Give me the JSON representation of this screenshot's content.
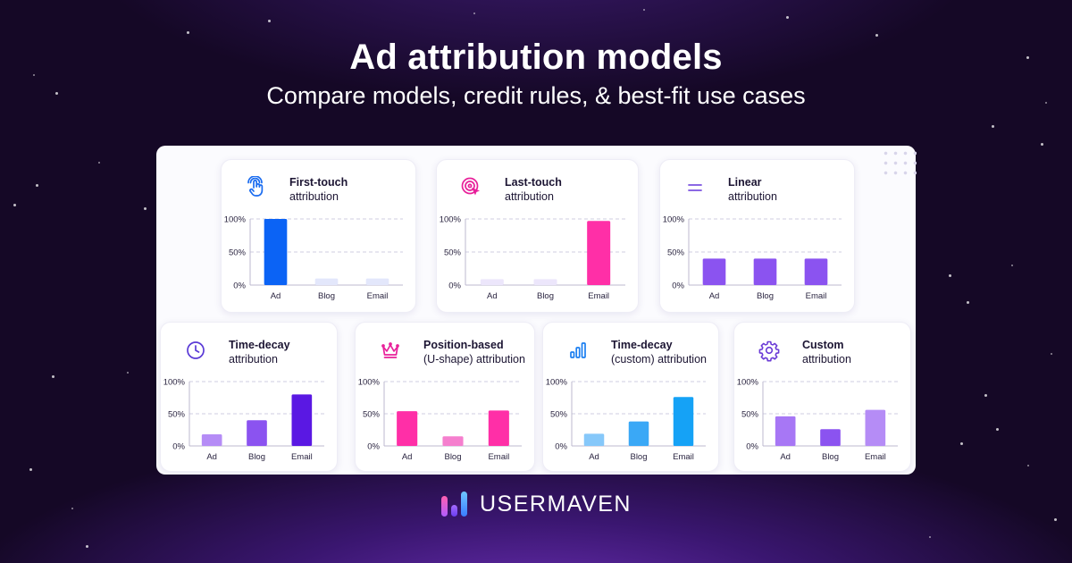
{
  "hero": {
    "title": "Ad attribution models",
    "subtitle": "Compare models, credit rules, & best-fit use cases"
  },
  "brand": {
    "name": "USERMAVEN"
  },
  "colors": {
    "blue": "#0b63f5",
    "pink": "#ff2fa7",
    "purple": "#8b53f0",
    "deep_purple": "#5a18e3",
    "sky": "#15a2f6",
    "lavender": "#b58cf6",
    "pale": "#e3e7fb"
  },
  "cards": [
    {
      "title_line1": "First-touch",
      "title_line2": "attribution",
      "icon": "tap-hand-icon",
      "icon_bg": "#e0efff",
      "icon_color": "#1a6cf0"
    },
    {
      "title_line1": "Last-touch",
      "title_line2": "attribution",
      "icon": "cursor-target-icon",
      "icon_bg": "#ffe2f3",
      "icon_color": "#e8209a"
    },
    {
      "title_line1": "Linear",
      "title_line2": "attribution",
      "icon": "equal-lines-icon",
      "icon_bg": "#ece7fb",
      "icon_color": "#7b53e0"
    },
    {
      "title_line1": "Time-decay",
      "title_line2": "attribution",
      "icon": "clock-icon",
      "icon_bg": "#ece7fb",
      "icon_color": "#5a3ad6"
    },
    {
      "title_line1": "Position-based",
      "title_line2": "(U-shape) attribution",
      "icon": "crown-icon",
      "icon_bg": "#ffe2f3",
      "icon_color": "#e8209a"
    },
    {
      "title_line1": "Time-decay",
      "title_line2": "(custom) attribution",
      "icon": "bar-chart-icon",
      "icon_bg": "#e0efff",
      "icon_color": "#1a7ef0"
    },
    {
      "title_line1": "Custom",
      "title_line2": "attribution",
      "icon": "gear-icon",
      "icon_bg": "#ece7fb",
      "icon_color": "#6a3ad6"
    }
  ],
  "chart_data": [
    {
      "type": "bar",
      "title": "First-touch attribution",
      "categories": [
        "Ad",
        "Blog",
        "Email"
      ],
      "values": [
        100,
        10,
        10
      ],
      "colors": [
        "#0b63f5",
        "#e3e7fb",
        "#e3e7fb"
      ],
      "ylim": [
        0,
        100
      ],
      "yticks": [
        "100%",
        "50%",
        "0%"
      ],
      "grid": true
    },
    {
      "type": "bar",
      "title": "Last-touch attribution",
      "categories": [
        "Ad",
        "Blog",
        "Email"
      ],
      "values": [
        9,
        9,
        97
      ],
      "colors": [
        "#ece6fb",
        "#ece6fb",
        "#ff2fa7"
      ],
      "ylim": [
        0,
        100
      ],
      "yticks": [
        "100%",
        "50%",
        "0%"
      ],
      "grid": true
    },
    {
      "type": "bar",
      "title": "Linear attribution",
      "categories": [
        "Ad",
        "Blog",
        "Email"
      ],
      "values": [
        40,
        40,
        40
      ],
      "colors": [
        "#8b53f0",
        "#8b53f0",
        "#8b53f0"
      ],
      "ylim": [
        0,
        100
      ],
      "yticks": [
        "100%",
        "50%",
        "0%"
      ],
      "grid": true
    },
    {
      "type": "bar",
      "title": "Time-decay attribution",
      "categories": [
        "Ad",
        "Blog",
        "Email"
      ],
      "values": [
        18,
        40,
        80
      ],
      "colors": [
        "#b58cf6",
        "#8b53f0",
        "#5a18e3"
      ],
      "ylim": [
        0,
        100
      ],
      "yticks": [
        "100%",
        "50%",
        "0%"
      ],
      "grid": true
    },
    {
      "type": "bar",
      "title": "Position-based (U-shape) attribution",
      "categories": [
        "Ad",
        "Blog",
        "Email"
      ],
      "values": [
        54,
        15,
        55
      ],
      "colors": [
        "#ff2fa7",
        "#f57fce",
        "#ff2fa7"
      ],
      "ylim": [
        0,
        100
      ],
      "yticks": [
        "100%",
        "50%",
        "0%"
      ],
      "grid": true
    },
    {
      "type": "bar",
      "title": "Time-decay (custom) attribution",
      "categories": [
        "Ad",
        "Blog",
        "Email"
      ],
      "values": [
        19,
        38,
        76
      ],
      "colors": [
        "#86c8fa",
        "#3aa8f6",
        "#15a2f6"
      ],
      "ylim": [
        0,
        100
      ],
      "yticks": [
        "100%",
        "50%",
        "0%"
      ],
      "grid": true
    },
    {
      "type": "bar",
      "title": "Custom attribution",
      "categories": [
        "Ad",
        "Blog",
        "Email"
      ],
      "values": [
        46,
        26,
        56
      ],
      "colors": [
        "#a777f5",
        "#8b53f0",
        "#b58cf6"
      ],
      "ylim": [
        0,
        100
      ],
      "yticks": [
        "100%",
        "50%",
        "0%"
      ],
      "grid": true
    }
  ]
}
